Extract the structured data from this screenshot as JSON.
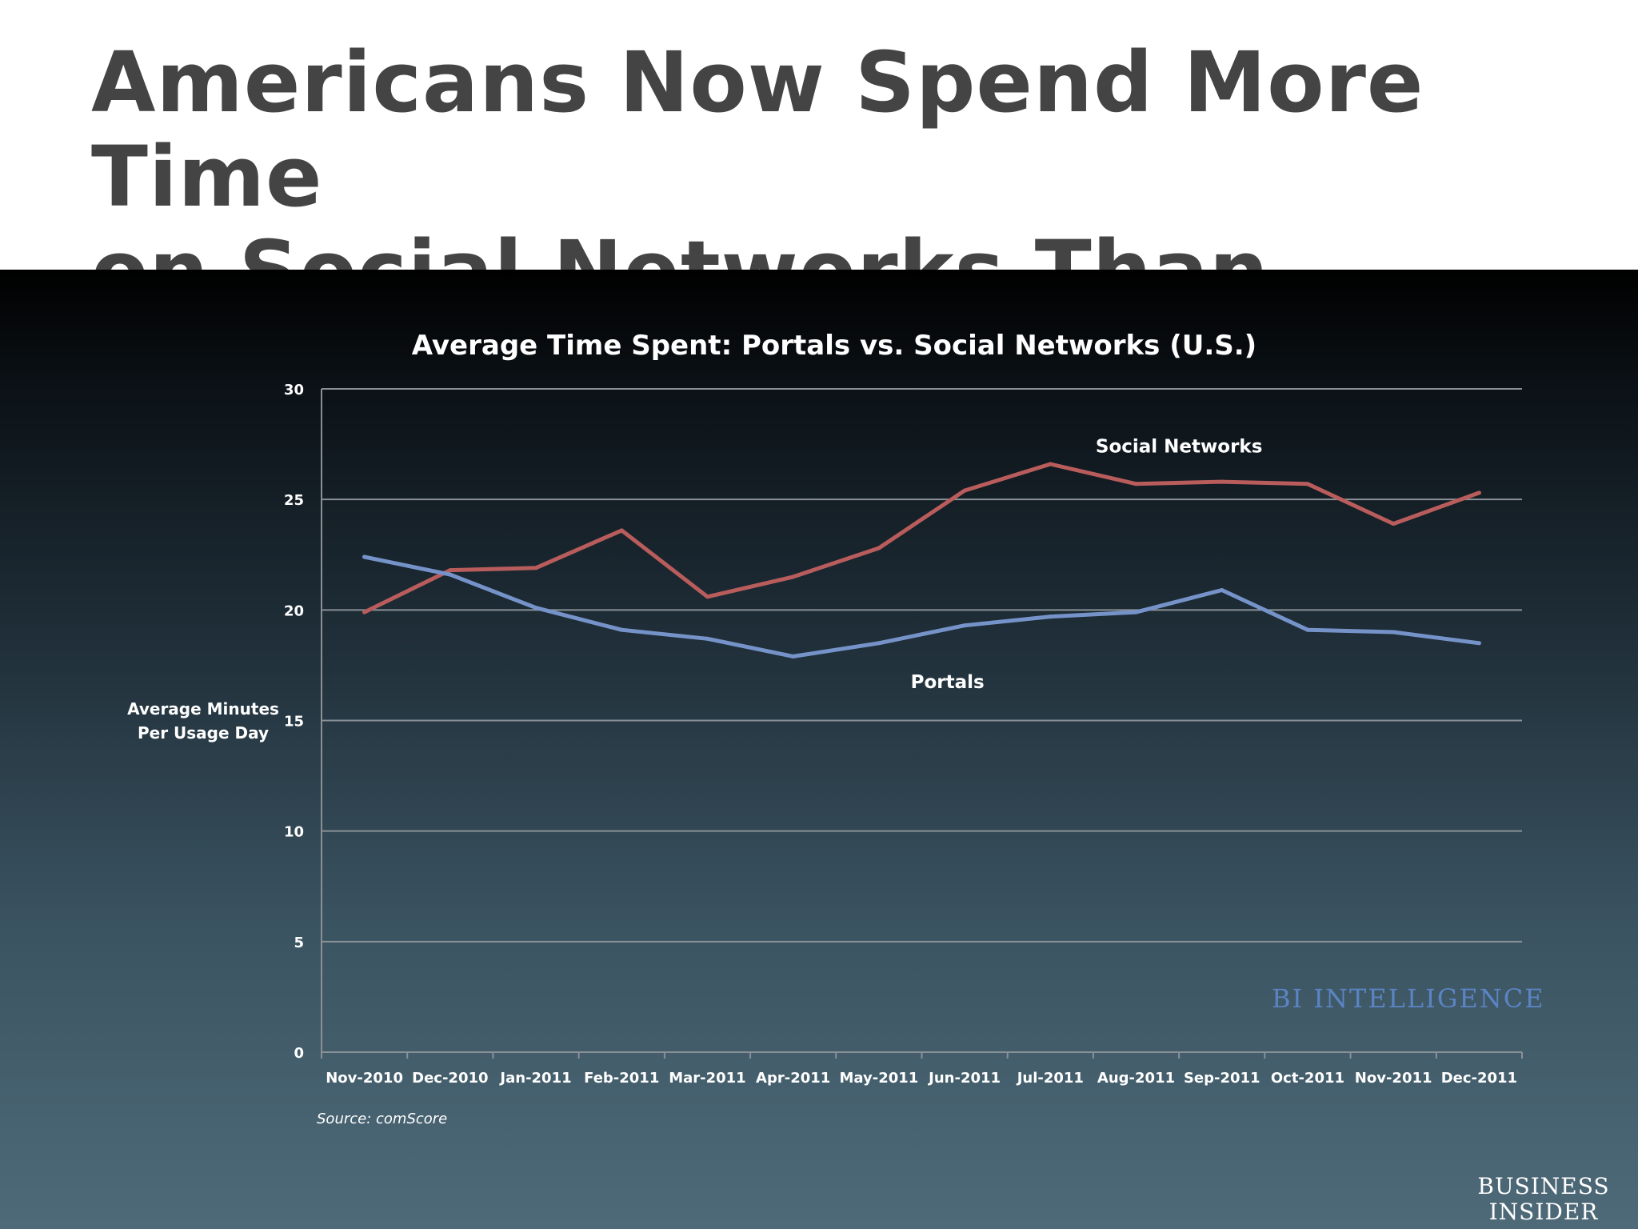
{
  "page": {
    "title_lines": [
      "Americans Now Spend More Time",
      "on Social Networks Than Portals"
    ],
    "watermark": "BI INTELLIGENCE",
    "logo_lines": [
      "BUSINESS",
      "INSIDER"
    ]
  },
  "chart_data": {
    "type": "line",
    "title": "Average Time Spent: Portals vs. Social Networks (U.S.)",
    "xlabel": "",
    "ylabel_lines": [
      "Average Minutes",
      "Per Usage Day"
    ],
    "source": "Source: comScore",
    "categories": [
      "Nov-2010",
      "Dec-2010",
      "Jan-2011",
      "Feb-2011",
      "Mar-2011",
      "Apr-2011",
      "May-2011",
      "Jun-2011",
      "Jul-2011",
      "Aug-2011",
      "Sep-2011",
      "Oct-2011",
      "Nov-2011",
      "Dec-2011"
    ],
    "ylim": [
      0,
      30
    ],
    "yticks": [
      0,
      5,
      10,
      15,
      20,
      25,
      30
    ],
    "grid": true,
    "series": [
      {
        "name": "Social Networks",
        "color": "#b85c5c",
        "values": [
          19.9,
          21.8,
          21.9,
          23.6,
          20.6,
          21.5,
          22.8,
          25.4,
          26.6,
          25.7,
          25.8,
          25.7,
          23.9,
          25.3
        ]
      },
      {
        "name": "Portals",
        "color": "#7593c9",
        "values": [
          22.4,
          21.6,
          20.1,
          19.1,
          18.7,
          17.9,
          18.5,
          19.3,
          19.7,
          19.9,
          20.9,
          19.1,
          19.0,
          18.5
        ]
      }
    ]
  }
}
